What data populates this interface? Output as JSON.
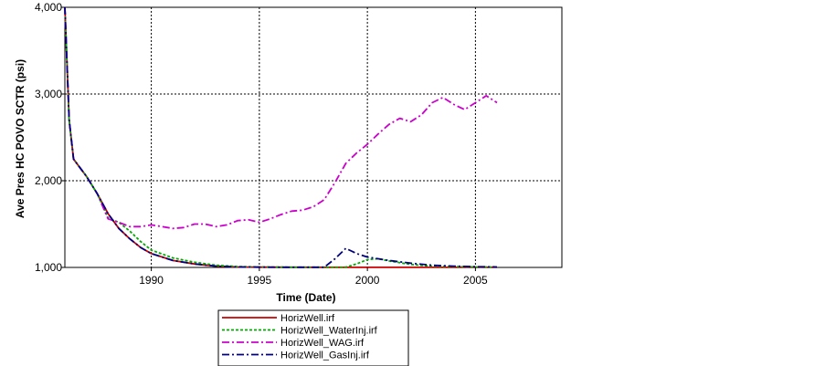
{
  "chart_data": {
    "type": "line",
    "xlabel": "Time (Date)",
    "ylabel": "Ave Pres HC POVO SCTR (psi)",
    "xlim": [
      1986,
      2009
    ],
    "ylim": [
      1000,
      4000
    ],
    "x_ticks": [
      1990,
      1995,
      2000,
      2005
    ],
    "x_tick_labels": [
      "1990",
      "1995",
      "2000",
      "2005"
    ],
    "y_ticks": [
      1000,
      2000,
      3000,
      4000
    ],
    "y_tick_labels": [
      "1,000",
      "2,000",
      "3,000",
      "4,000"
    ],
    "grid": true,
    "legend_position": "bottom-center",
    "series": [
      {
        "name": "HorizWell.irf",
        "color": "#cc0000",
        "dash": "solid",
        "x": [
          1986.0,
          1986.2,
          1986.4,
          1987.0,
          1987.5,
          1988.0,
          1988.5,
          1989.0,
          1989.5,
          1990.0,
          1991.0,
          1992.0,
          1993.0,
          1994.0,
          1995.0,
          1996.0,
          2000.0,
          2005.0,
          2006.0
        ],
        "y": [
          4000,
          2700,
          2250,
          2050,
          1850,
          1620,
          1450,
          1330,
          1230,
          1160,
          1080,
          1040,
          1015,
          1005,
          1003,
          1002,
          1001,
          1001,
          1001
        ]
      },
      {
        "name": "HorizWell_WaterInj.irf",
        "color": "#00aa00",
        "dash": "dotted",
        "x": [
          1986.0,
          1986.2,
          1986.4,
          1987.0,
          1987.5,
          1988.0,
          1988.5,
          1989.0,
          1989.5,
          1990.0,
          1991.0,
          1992.0,
          1993.0,
          1994.0,
          1995.0,
          1996.0,
          1998.0,
          1999.0,
          1999.5,
          2000.0,
          2000.5,
          2001.0,
          2002.0,
          2003.0,
          2005.0,
          2006.0
        ],
        "y": [
          4000,
          2700,
          2250,
          2050,
          1850,
          1570,
          1520,
          1420,
          1300,
          1200,
          1110,
          1060,
          1025,
          1010,
          1005,
          1003,
          1002,
          1003,
          1040,
          1090,
          1100,
          1075,
          1035,
          1015,
          1005,
          1004
        ]
      },
      {
        "name": "HorizWell_WAG.irf",
        "color": "#cc00cc",
        "dash": "dashdot",
        "x": [
          1986.0,
          1986.2,
          1986.4,
          1987.0,
          1987.5,
          1988.0,
          1988.5,
          1989.0,
          1989.5,
          1990.0,
          1990.5,
          1991.0,
          1991.5,
          1992.0,
          1992.5,
          1993.0,
          1993.5,
          1994.0,
          1994.5,
          1995.0,
          1995.5,
          1996.0,
          1996.5,
          1997.0,
          1997.5,
          1998.0,
          1998.5,
          1999.0,
          1999.5,
          2000.0,
          2000.5,
          2001.0,
          2001.5,
          2002.0,
          2002.5,
          2003.0,
          2003.5,
          2004.0,
          2004.5,
          2005.0,
          2005.5,
          2006.0
        ],
        "y": [
          4000,
          2700,
          2250,
          2050,
          1850,
          1560,
          1520,
          1470,
          1470,
          1490,
          1470,
          1450,
          1460,
          1500,
          1500,
          1470,
          1490,
          1540,
          1550,
          1520,
          1560,
          1610,
          1650,
          1660,
          1700,
          1780,
          1980,
          2200,
          2320,
          2420,
          2540,
          2650,
          2720,
          2680,
          2760,
          2900,
          2960,
          2880,
          2820,
          2900,
          2980,
          2900
        ]
      },
      {
        "name": "HorizWell_GasInj.irf",
        "color": "#000080",
        "dash": "dashdot",
        "x": [
          1986.0,
          1986.2,
          1986.4,
          1987.0,
          1987.5,
          1988.0,
          1988.5,
          1989.0,
          1989.5,
          1990.0,
          1991.0,
          1992.0,
          1993.0,
          1994.0,
          1995.0,
          1996.0,
          1997.0,
          1998.0,
          1998.5,
          1999.0,
          1999.5,
          2000.0,
          2000.5,
          2001.0,
          2002.0,
          2003.0,
          2004.0,
          2005.0,
          2006.0
        ],
        "y": [
          4000,
          2700,
          2250,
          2050,
          1850,
          1620,
          1450,
          1330,
          1230,
          1160,
          1080,
          1040,
          1015,
          1005,
          1003,
          1002,
          1002,
          1002,
          1100,
          1220,
          1160,
          1120,
          1100,
          1080,
          1050,
          1025,
          1015,
          1008,
          1005
        ]
      }
    ]
  }
}
